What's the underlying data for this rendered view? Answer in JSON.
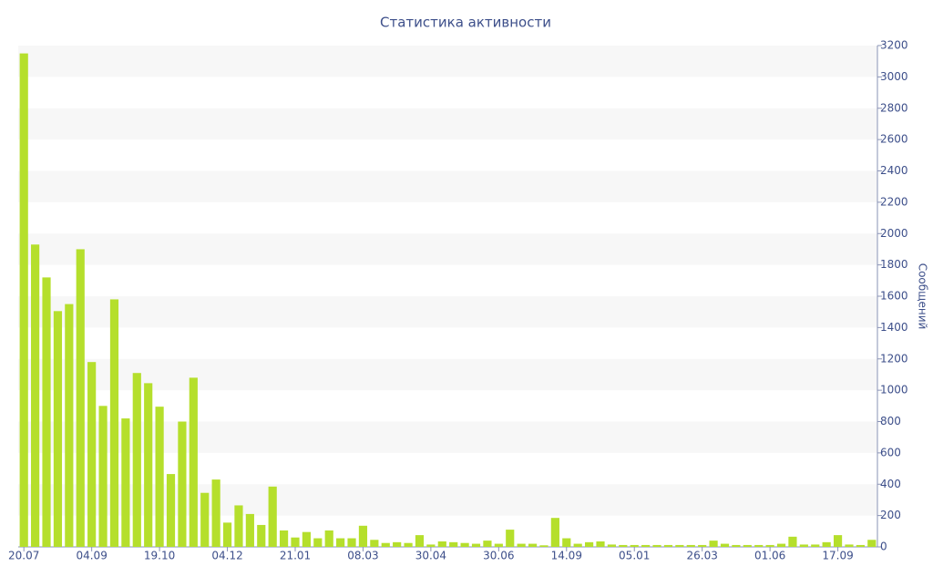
{
  "chart_data": {
    "type": "bar",
    "title": "Статистика активности",
    "y_label": "Сообщений",
    "categories": [
      "20.07",
      null,
      null,
      null,
      null,
      null,
      "04.09",
      null,
      null,
      null,
      null,
      null,
      "19.10",
      null,
      null,
      null,
      null,
      null,
      "04.12",
      null,
      null,
      null,
      null,
      null,
      "21.01",
      null,
      null,
      null,
      null,
      null,
      "08.03",
      null,
      null,
      null,
      null,
      null,
      "30.04",
      null,
      null,
      null,
      null,
      null,
      "30.06",
      null,
      null,
      null,
      null,
      null,
      "14.09",
      null,
      null,
      null,
      null,
      null,
      "05.01",
      null,
      null,
      null,
      null,
      null,
      "26.03",
      null,
      null,
      null,
      null,
      null,
      "01.06",
      null,
      null,
      null,
      null,
      null,
      "17.09",
      null,
      null,
      null
    ],
    "values": [
      3150,
      1930,
      1720,
      1505,
      1550,
      1900,
      1180,
      900,
      1580,
      820,
      1110,
      1045,
      895,
      465,
      800,
      1080,
      345,
      430,
      155,
      265,
      210,
      140,
      385,
      105,
      60,
      95,
      55,
      105,
      55,
      55,
      135,
      45,
      25,
      30,
      25,
      75,
      15,
      35,
      30,
      25,
      20,
      40,
      20,
      110,
      20,
      20,
      10,
      185,
      55,
      20,
      30,
      35,
      15,
      12,
      12,
      12,
      12,
      12,
      12,
      12,
      12,
      40,
      20,
      12,
      12,
      12,
      12,
      20,
      65,
      15,
      15,
      30,
      75,
      15,
      12,
      45
    ],
    "color": "#b5df2c",
    "ylim": [
      0,
      3200
    ],
    "yticks": [
      0,
      200,
      400,
      600,
      800,
      1000,
      1200,
      1400,
      1600,
      1800,
      2000,
      2200,
      2400,
      2600,
      2800,
      3000,
      3200
    ],
    "y_axis_side": "right",
    "alternate_bands": true
  }
}
